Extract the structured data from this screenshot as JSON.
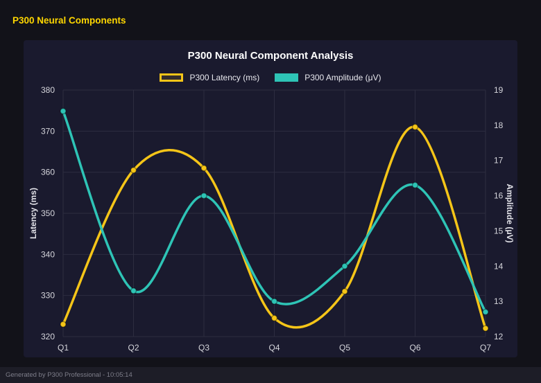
{
  "page": {
    "header_title": "P300 Neural Components",
    "footer_text": "Generated by P300 Professional - 10:05:14"
  },
  "colors": {
    "page_bg": "#121219",
    "panel_bg": "#1a1a2e",
    "grid": "#2d2d40",
    "tick_text": "#d6d6dc",
    "title_text": "#ffffff",
    "accent_yellow": "#f5c518",
    "accent_teal": "#2ec4b6",
    "point_border": "rgba(0,0,0,0.35)"
  },
  "chart_data": {
    "type": "line",
    "title": "P300 Neural Component Analysis",
    "categories": [
      "Q1",
      "Q2",
      "Q3",
      "Q4",
      "Q5",
      "Q6",
      "Q7"
    ],
    "series": [
      {
        "name": "P300 Latency (ms)",
        "axis": "left",
        "color": "#f5c518",
        "values": [
          323,
          360.5,
          361,
          324.5,
          331,
          371,
          322
        ]
      },
      {
        "name": "P300 Amplitude (μV)",
        "axis": "right",
        "color": "#2ec4b6",
        "values": [
          18.4,
          13.3,
          16.0,
          13.0,
          14.0,
          16.3,
          12.7
        ]
      }
    ],
    "left_axis": {
      "label": "Latency (ms)",
      "min": 320,
      "max": 380,
      "step": 10
    },
    "right_axis": {
      "label": "Amplitude (μV)",
      "min": 12,
      "max": 19,
      "step": 1
    },
    "grid": true,
    "smooth": true,
    "legend_position": "top"
  }
}
